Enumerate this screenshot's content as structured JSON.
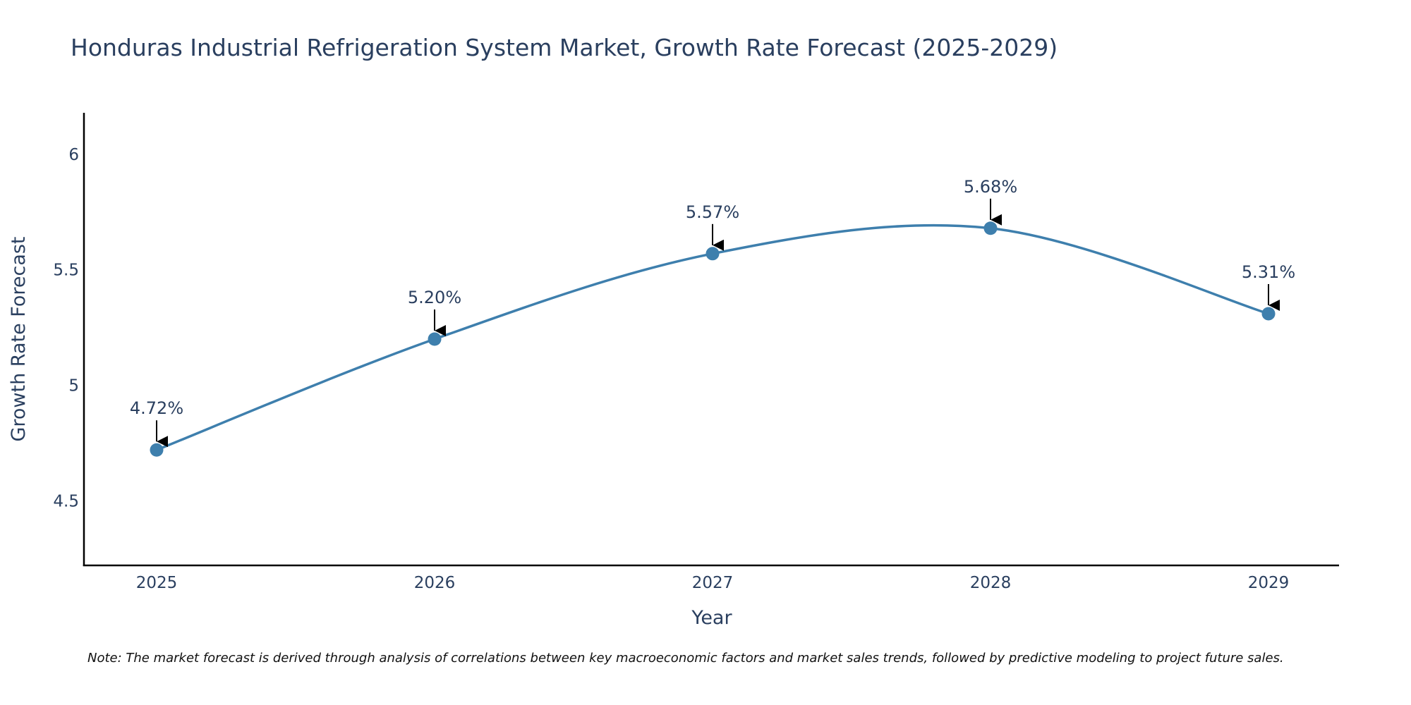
{
  "chart_data": {
    "type": "line",
    "title": "Honduras Industrial Refrigeration System Market, Growth Rate Forecast (2025-2029)",
    "xlabel": "Year",
    "ylabel": "Growth Rate Forecast",
    "categories": [
      "2025",
      "2026",
      "2027",
      "2028",
      "2029"
    ],
    "series": [
      {
        "name": "Growth Rate Forecast",
        "values": [
          4.72,
          5.2,
          5.57,
          5.68,
          5.31
        ],
        "labels": [
          "4.72%",
          "5.20%",
          "5.57%",
          "5.68%",
          "5.31%"
        ],
        "color": "#3e7fad"
      }
    ],
    "ylim": [
      4.22,
      6.18
    ],
    "yticks": [
      4.5,
      5,
      5.5,
      6
    ],
    "ytick_labels": [
      "4.5",
      "5",
      "5.5",
      "6"
    ],
    "grid": false,
    "line_shape": "spline",
    "note": "Note: The market forecast is derived through analysis of correlations between key macroeconomic factors and market sales trends, followed by predictive modeling to project future sales."
  },
  "colors": {
    "text": "#2a3f5f",
    "axis": "#000000",
    "series": "#3e7fad",
    "arrow": "#000000"
  }
}
